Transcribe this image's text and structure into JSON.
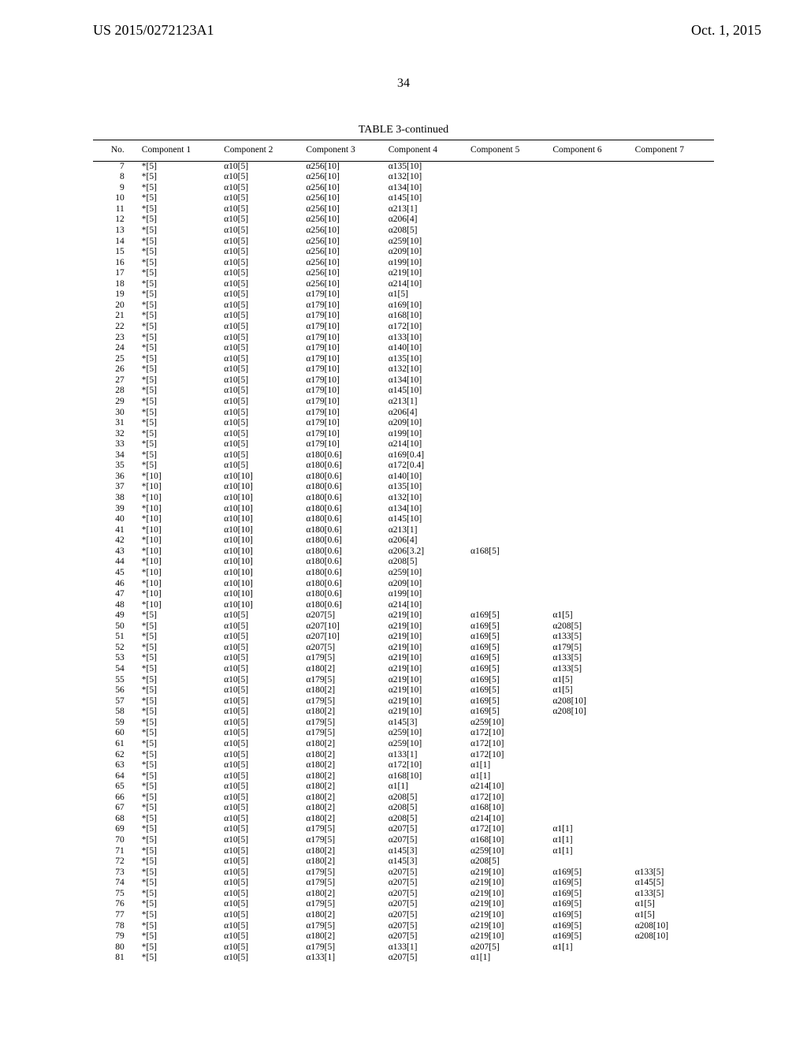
{
  "header": {
    "pub_number": "US 2015/0272123A1",
    "pub_date": "Oct. 1, 2015"
  },
  "page_number": "34",
  "table": {
    "caption": "TABLE 3-continued",
    "columns": [
      "No.",
      "Component 1",
      "Component 2",
      "Component 3",
      "Component 4",
      "Component 5",
      "Component 6",
      "Component 7"
    ],
    "rows": [
      [
        "7",
        "*[5]",
        "α10[5]",
        "α256[10]",
        "α135[10]",
        "",
        "",
        ""
      ],
      [
        "8",
        "*[5]",
        "α10[5]",
        "α256[10]",
        "α132[10]",
        "",
        "",
        ""
      ],
      [
        "9",
        "*[5]",
        "α10[5]",
        "α256[10]",
        "α134[10]",
        "",
        "",
        ""
      ],
      [
        "10",
        "*[5]",
        "α10[5]",
        "α256[10]",
        "α145[10]",
        "",
        "",
        ""
      ],
      [
        "11",
        "*[5]",
        "α10[5]",
        "α256[10]",
        "α213[1]",
        "",
        "",
        ""
      ],
      [
        "12",
        "*[5]",
        "α10[5]",
        "α256[10]",
        "α206[4]",
        "",
        "",
        ""
      ],
      [
        "13",
        "*[5]",
        "α10[5]",
        "α256[10]",
        "α208[5]",
        "",
        "",
        ""
      ],
      [
        "14",
        "*[5]",
        "α10[5]",
        "α256[10]",
        "α259[10]",
        "",
        "",
        ""
      ],
      [
        "15",
        "*[5]",
        "α10[5]",
        "α256[10]",
        "α209[10]",
        "",
        "",
        ""
      ],
      [
        "16",
        "*[5]",
        "α10[5]",
        "α256[10]",
        "α199[10]",
        "",
        "",
        ""
      ],
      [
        "17",
        "*[5]",
        "α10[5]",
        "α256[10]",
        "α219[10]",
        "",
        "",
        ""
      ],
      [
        "18",
        "*[5]",
        "α10[5]",
        "α256[10]",
        "α214[10]",
        "",
        "",
        ""
      ],
      [
        "19",
        "*[5]",
        "α10[5]",
        "α179[10]",
        "α1[5]",
        "",
        "",
        ""
      ],
      [
        "20",
        "*[5]",
        "α10[5]",
        "α179[10]",
        "α169[10]",
        "",
        "",
        ""
      ],
      [
        "21",
        "*[5]",
        "α10[5]",
        "α179[10]",
        "α168[10]",
        "",
        "",
        ""
      ],
      [
        "22",
        "*[5]",
        "α10[5]",
        "α179[10]",
        "α172[10]",
        "",
        "",
        ""
      ],
      [
        "23",
        "*[5]",
        "α10[5]",
        "α179[10]",
        "α133[10]",
        "",
        "",
        ""
      ],
      [
        "24",
        "*[5]",
        "α10[5]",
        "α179[10]",
        "α140[10]",
        "",
        "",
        ""
      ],
      [
        "25",
        "*[5]",
        "α10[5]",
        "α179[10]",
        "α135[10]",
        "",
        "",
        ""
      ],
      [
        "26",
        "*[5]",
        "α10[5]",
        "α179[10]",
        "α132[10]",
        "",
        "",
        ""
      ],
      [
        "27",
        "*[5]",
        "α10[5]",
        "α179[10]",
        "α134[10]",
        "",
        "",
        ""
      ],
      [
        "28",
        "*[5]",
        "α10[5]",
        "α179[10]",
        "α145[10]",
        "",
        "",
        ""
      ],
      [
        "29",
        "*[5]",
        "α10[5]",
        "α179[10]",
        "α213[1]",
        "",
        "",
        ""
      ],
      [
        "30",
        "*[5]",
        "α10[5]",
        "α179[10]",
        "α206[4]",
        "",
        "",
        ""
      ],
      [
        "31",
        "*[5]",
        "α10[5]",
        "α179[10]",
        "α209[10]",
        "",
        "",
        ""
      ],
      [
        "32",
        "*[5]",
        "α10[5]",
        "α179[10]",
        "α199[10]",
        "",
        "",
        ""
      ],
      [
        "33",
        "*[5]",
        "α10[5]",
        "α179[10]",
        "α214[10]",
        "",
        "",
        ""
      ],
      [
        "34",
        "*[5]",
        "α10[5]",
        "α180[0.6]",
        "α169[0.4]",
        "",
        "",
        ""
      ],
      [
        "35",
        "*[5]",
        "α10[5]",
        "α180[0.6]",
        "α172[0.4]",
        "",
        "",
        ""
      ],
      [
        "36",
        "*[10]",
        "α10[10]",
        "α180[0.6]",
        "α140[10]",
        "",
        "",
        ""
      ],
      [
        "37",
        "*[10]",
        "α10[10]",
        "α180[0.6]",
        "α135[10]",
        "",
        "",
        ""
      ],
      [
        "38",
        "*[10]",
        "α10[10]",
        "α180[0.6]",
        "α132[10]",
        "",
        "",
        ""
      ],
      [
        "39",
        "*[10]",
        "α10[10]",
        "α180[0.6]",
        "α134[10]",
        "",
        "",
        ""
      ],
      [
        "40",
        "*[10]",
        "α10[10]",
        "α180[0.6]",
        "α145[10]",
        "",
        "",
        ""
      ],
      [
        "41",
        "*[10]",
        "α10[10]",
        "α180[0.6]",
        "α213[1]",
        "",
        "",
        ""
      ],
      [
        "42",
        "*[10]",
        "α10[10]",
        "α180[0.6]",
        "α206[4]",
        "",
        "",
        ""
      ],
      [
        "43",
        "*[10]",
        "α10[10]",
        "α180[0.6]",
        "α206[3.2]",
        "α168[5]",
        "",
        ""
      ],
      [
        "44",
        "*[10]",
        "α10[10]",
        "α180[0.6]",
        "α208[5]",
        "",
        "",
        ""
      ],
      [
        "45",
        "*[10]",
        "α10[10]",
        "α180[0.6]",
        "α259[10]",
        "",
        "",
        ""
      ],
      [
        "46",
        "*[10]",
        "α10[10]",
        "α180[0.6]",
        "α209[10]",
        "",
        "",
        ""
      ],
      [
        "47",
        "*[10]",
        "α10[10]",
        "α180[0.6]",
        "α199[10]",
        "",
        "",
        ""
      ],
      [
        "48",
        "*[10]",
        "α10[10]",
        "α180[0.6]",
        "α214[10]",
        "",
        "",
        ""
      ],
      [
        "49",
        "*[5]",
        "α10[5]",
        "α207[5]",
        "α219[10]",
        "α169[5]",
        "α1[5]",
        ""
      ],
      [
        "50",
        "*[5]",
        "α10[5]",
        "α207[10]",
        "α219[10]",
        "α169[5]",
        "α208[5]",
        ""
      ],
      [
        "51",
        "*[5]",
        "α10[5]",
        "α207[10]",
        "α219[10]",
        "α169[5]",
        "α133[5]",
        ""
      ],
      [
        "52",
        "*[5]",
        "α10[5]",
        "α207[5]",
        "α219[10]",
        "α169[5]",
        "α179[5]",
        ""
      ],
      [
        "53",
        "*[5]",
        "α10[5]",
        "α179[5]",
        "α219[10]",
        "α169[5]",
        "α133[5]",
        ""
      ],
      [
        "54",
        "*[5]",
        "α10[5]",
        "α180[2]",
        "α219[10]",
        "α169[5]",
        "α133[5]",
        ""
      ],
      [
        "55",
        "*[5]",
        "α10[5]",
        "α179[5]",
        "α219[10]",
        "α169[5]",
        "α1[5]",
        ""
      ],
      [
        "56",
        "*[5]",
        "α10[5]",
        "α180[2]",
        "α219[10]",
        "α169[5]",
        "α1[5]",
        ""
      ],
      [
        "57",
        "*[5]",
        "α10[5]",
        "α179[5]",
        "α219[10]",
        "α169[5]",
        "α208[10]",
        ""
      ],
      [
        "58",
        "*[5]",
        "α10[5]",
        "α180[2]",
        "α219[10]",
        "α169[5]",
        "α208[10]",
        ""
      ],
      [
        "59",
        "*[5]",
        "α10[5]",
        "α179[5]",
        "α145[3]",
        "α259[10]",
        "",
        ""
      ],
      [
        "60",
        "*[5]",
        "α10[5]",
        "α179[5]",
        "α259[10]",
        "α172[10]",
        "",
        ""
      ],
      [
        "61",
        "*[5]",
        "α10[5]",
        "α180[2]",
        "α259[10]",
        "α172[10]",
        "",
        ""
      ],
      [
        "62",
        "*[5]",
        "α10[5]",
        "α180[2]",
        "α133[1]",
        "α172[10]",
        "",
        ""
      ],
      [
        "63",
        "*[5]",
        "α10[5]",
        "α180[2]",
        "α172[10]",
        "α1[1]",
        "",
        ""
      ],
      [
        "64",
        "*[5]",
        "α10[5]",
        "α180[2]",
        "α168[10]",
        "α1[1]",
        "",
        ""
      ],
      [
        "65",
        "*[5]",
        "α10[5]",
        "α180[2]",
        "α1[1]",
        "α214[10]",
        "",
        ""
      ],
      [
        "66",
        "*[5]",
        "α10[5]",
        "α180[2]",
        "α208[5]",
        "α172[10]",
        "",
        ""
      ],
      [
        "67",
        "*[5]",
        "α10[5]",
        "α180[2]",
        "α208[5]",
        "α168[10]",
        "",
        ""
      ],
      [
        "68",
        "*[5]",
        "α10[5]",
        "α180[2]",
        "α208[5]",
        "α214[10]",
        "",
        ""
      ],
      [
        "69",
        "*[5]",
        "α10[5]",
        "α179[5]",
        "α207[5]",
        "α172[10]",
        "α1[1]",
        ""
      ],
      [
        "70",
        "*[5]",
        "α10[5]",
        "α179[5]",
        "α207[5]",
        "α168[10]",
        "α1[1]",
        ""
      ],
      [
        "71",
        "*[5]",
        "α10[5]",
        "α180[2]",
        "α145[3]",
        "α259[10]",
        "α1[1]",
        ""
      ],
      [
        "72",
        "*[5]",
        "α10[5]",
        "α180[2]",
        "α145[3]",
        "α208[5]",
        "",
        ""
      ],
      [
        "73",
        "*[5]",
        "α10[5]",
        "α179[5]",
        "α207[5]",
        "α219[10]",
        "α169[5]",
        "α133[5]"
      ],
      [
        "74",
        "*[5]",
        "α10[5]",
        "α179[5]",
        "α207[5]",
        "α219[10]",
        "α169[5]",
        "α145[5]"
      ],
      [
        "75",
        "*[5]",
        "α10[5]",
        "α180[2]",
        "α207[5]",
        "α219[10]",
        "α169[5]",
        "α133[5]"
      ],
      [
        "76",
        "*[5]",
        "α10[5]",
        "α179[5]",
        "α207[5]",
        "α219[10]",
        "α169[5]",
        "α1[5]"
      ],
      [
        "77",
        "*[5]",
        "α10[5]",
        "α180[2]",
        "α207[5]",
        "α219[10]",
        "α169[5]",
        "α1[5]"
      ],
      [
        "78",
        "*[5]",
        "α10[5]",
        "α179[5]",
        "α207[5]",
        "α219[10]",
        "α169[5]",
        "α208[10]"
      ],
      [
        "79",
        "*[5]",
        "α10[5]",
        "α180[2]",
        "α207[5]",
        "α219[10]",
        "α169[5]",
        "α208[10]"
      ],
      [
        "80",
        "*[5]",
        "α10[5]",
        "α179[5]",
        "α133[1]",
        "α207[5]",
        "α1[1]",
        ""
      ],
      [
        "81",
        "*[5]",
        "α10[5]",
        "α133[1]",
        "α207[5]",
        "α1[1]",
        "",
        ""
      ]
    ]
  }
}
